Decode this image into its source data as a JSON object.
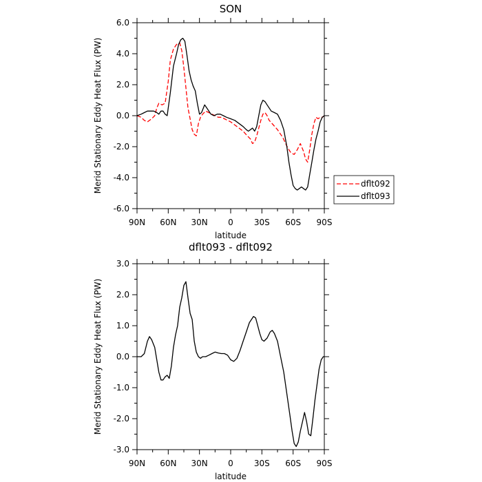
{
  "chart_data": [
    {
      "type": "line",
      "title": "SON",
      "xlabel": "latitude",
      "ylabel": "Merid Stationary Eddy Heat Flux (PW)",
      "xlim": [
        90,
        -90
      ],
      "ylim": [
        -6.0,
        6.0
      ],
      "yticks": [
        -6.0,
        -4.0,
        -2.0,
        0.0,
        2.0,
        4.0,
        6.0
      ],
      "ytick_labels": [
        "-6.0",
        "-4.0",
        "-2.0",
        "0.0",
        "2.0",
        "4.0",
        "6.0"
      ],
      "xticks": [
        90,
        60,
        30,
        0,
        -30,
        -60,
        -90
      ],
      "xtick_labels": [
        "90N",
        "60N",
        "30N",
        "0",
        "30S",
        "60S",
        "90S"
      ],
      "grid": false,
      "legend": "right",
      "series": [
        {
          "name": "dflt092",
          "color": "#ff0000",
          "dash": "dashed",
          "x": [
            90,
            86,
            83,
            80,
            76,
            73,
            71,
            69,
            66,
            63,
            60,
            58,
            55,
            52,
            49,
            47,
            45,
            43,
            41,
            39,
            37,
            35,
            33,
            31,
            29,
            27,
            24,
            21,
            18,
            15,
            12,
            9,
            6,
            3,
            0,
            -4,
            -8,
            -12,
            -16,
            -19,
            -21,
            -23,
            -25,
            -27,
            -29,
            -31,
            -33,
            -35,
            -37,
            -41,
            -45,
            -50,
            -55,
            -58,
            -61,
            -64,
            -67,
            -70,
            -72,
            -74,
            -76,
            -78,
            -80,
            -82,
            -84,
            -86,
            -88,
            -90
          ],
          "y": [
            0.0,
            -0.1,
            -0.3,
            -0.4,
            -0.2,
            0.0,
            0.5,
            0.8,
            0.7,
            0.8,
            2.2,
            3.6,
            4.3,
            4.6,
            4.7,
            4.2,
            3.1,
            1.8,
            0.5,
            -0.2,
            -0.9,
            -1.2,
            -1.3,
            -0.5,
            -0.1,
            0.1,
            0.3,
            0.2,
            0.1,
            0.0,
            -0.1,
            -0.1,
            -0.2,
            -0.3,
            -0.4,
            -0.6,
            -0.8,
            -1.0,
            -1.3,
            -1.5,
            -1.8,
            -1.7,
            -1.3,
            -0.8,
            -0.3,
            0.1,
            0.2,
            0.0,
            -0.3,
            -0.6,
            -0.9,
            -1.4,
            -2.1,
            -2.4,
            -2.5,
            -2.2,
            -1.8,
            -2.3,
            -2.8,
            -3.0,
            -2.2,
            -1.2,
            -0.5,
            -0.1,
            -0.2,
            -0.1,
            -0.1,
            0.0
          ]
        },
        {
          "name": "dflt093",
          "color": "#000000",
          "dash": "solid",
          "x": [
            90,
            86,
            83,
            80,
            77,
            74,
            71,
            69,
            67,
            65,
            63,
            61,
            58,
            55,
            52,
            50,
            48,
            46,
            44,
            42,
            40,
            38,
            36,
            34,
            32,
            30,
            28,
            25,
            22,
            19,
            16,
            13,
            10,
            7,
            4,
            0,
            -4,
            -8,
            -12,
            -15,
            -17,
            -19,
            -21,
            -23,
            -25,
            -27,
            -29,
            -31,
            -33,
            -35,
            -37,
            -39,
            -42,
            -45,
            -48,
            -51,
            -54,
            -56,
            -58,
            -60,
            -62,
            -64,
            -66,
            -68,
            -70,
            -72,
            -74,
            -76,
            -78,
            -80,
            -82,
            -84,
            -86,
            -88,
            -90
          ],
          "y": [
            0.0,
            0.1,
            0.2,
            0.3,
            0.3,
            0.3,
            0.2,
            0.1,
            0.3,
            0.3,
            0.1,
            0.0,
            1.5,
            3.2,
            4.0,
            4.6,
            4.9,
            5.0,
            4.8,
            3.9,
            2.9,
            2.3,
            1.9,
            1.6,
            0.8,
            0.1,
            0.2,
            0.7,
            0.4,
            0.1,
            0.0,
            0.1,
            0.1,
            0.0,
            -0.1,
            -0.2,
            -0.3,
            -0.5,
            -0.7,
            -0.9,
            -1.0,
            -0.9,
            -0.8,
            -1.0,
            -0.7,
            0.0,
            0.7,
            1.0,
            0.9,
            0.7,
            0.5,
            0.3,
            0.2,
            0.1,
            -0.3,
            -0.9,
            -2.0,
            -3.0,
            -3.8,
            -4.5,
            -4.7,
            -4.8,
            -4.7,
            -4.6,
            -4.7,
            -4.8,
            -4.6,
            -3.8,
            -3.0,
            -2.2,
            -1.5,
            -1.0,
            -0.4,
            -0.1,
            0.0
          ]
        }
      ]
    },
    {
      "type": "line",
      "title": "dflt093 - dflt092",
      "xlabel": "latitude",
      "ylabel": "Merid Stationary Eddy Heat Flux (PW)",
      "xlim": [
        90,
        -90
      ],
      "ylim": [
        -3.0,
        3.0
      ],
      "yticks": [
        -3.0,
        -2.0,
        -1.0,
        0.0,
        1.0,
        2.0,
        3.0
      ],
      "ytick_labels": [
        "-3.0",
        "-2.0",
        "-1.0",
        "0.0",
        "1.0",
        "2.0",
        "3.0"
      ],
      "xticks": [
        90,
        60,
        30,
        0,
        -30,
        -60,
        -90
      ],
      "xtick_labels": [
        "90N",
        "60N",
        "30N",
        "0",
        "30S",
        "60S",
        "90S"
      ],
      "grid": false,
      "series": [
        {
          "color": "#000000",
          "dash": "solid",
          "x": [
            90,
            86,
            83,
            80,
            78,
            76,
            73,
            71,
            69,
            67,
            65,
            63,
            61,
            59,
            57,
            55,
            53,
            51,
            49,
            47,
            45,
            43,
            41,
            39,
            37,
            35,
            33,
            31,
            29,
            27,
            24,
            21,
            18,
            15,
            12,
            9,
            6,
            3,
            0,
            -3,
            -6,
            -9,
            -12,
            -15,
            -18,
            -20,
            -22,
            -24,
            -26,
            -28,
            -30,
            -32,
            -35,
            -38,
            -40,
            -42,
            -45,
            -48,
            -51,
            -54,
            -57,
            -59,
            -61,
            -63,
            -65,
            -67,
            -69,
            -71,
            -73,
            -75,
            -77,
            -79,
            -81,
            -83,
            -85,
            -87,
            -89,
            -90
          ],
          "y": [
            0.0,
            0.0,
            0.1,
            0.5,
            0.65,
            0.55,
            0.3,
            -0.1,
            -0.5,
            -0.75,
            -0.75,
            -0.65,
            -0.6,
            -0.7,
            -0.3,
            0.3,
            0.7,
            1.0,
            1.6,
            1.9,
            2.3,
            2.42,
            1.9,
            1.4,
            1.2,
            0.5,
            0.15,
            0.0,
            -0.05,
            0.0,
            0.0,
            0.05,
            0.1,
            0.15,
            0.12,
            0.1,
            0.1,
            0.05,
            -0.1,
            -0.15,
            -0.05,
            0.2,
            0.5,
            0.8,
            1.1,
            1.2,
            1.3,
            1.25,
            1.0,
            0.75,
            0.55,
            0.5,
            0.6,
            0.8,
            0.85,
            0.75,
            0.5,
            0.0,
            -0.5,
            -1.2,
            -1.9,
            -2.4,
            -2.8,
            -2.9,
            -2.75,
            -2.4,
            -2.1,
            -1.8,
            -2.1,
            -2.5,
            -2.55,
            -2.0,
            -1.4,
            -0.9,
            -0.4,
            -0.1,
            0.0,
            0.0
          ]
        }
      ]
    }
  ]
}
